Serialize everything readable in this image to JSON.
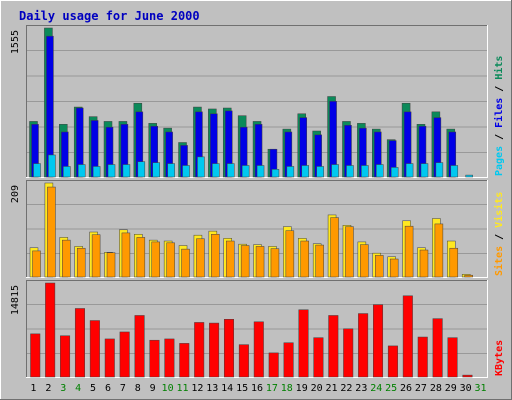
{
  "chart_data": {
    "type": "bar",
    "title": "Daily usage for June 2000",
    "categories": [
      "1",
      "2",
      "3",
      "4",
      "5",
      "6",
      "7",
      "8",
      "9",
      "10",
      "11",
      "12",
      "13",
      "14",
      "15",
      "16",
      "17",
      "18",
      "19",
      "20",
      "21",
      "22",
      "23",
      "24",
      "25",
      "26",
      "27",
      "28",
      "29",
      "30",
      "31"
    ],
    "weekend_days": [
      "3",
      "4",
      "10",
      "11",
      "17",
      "18",
      "24",
      "25",
      "31"
    ],
    "panels": [
      {
        "name": "hits-files-pages",
        "ymax_label": "1555",
        "ylim": [
          0,
          1555
        ],
        "legend": [
          "Pages",
          "/",
          "Files",
          "/",
          "Hits"
        ],
        "series": [
          {
            "name": "Hits",
            "values": [
              580,
              1555,
              550,
              730,
              630,
              580,
              580,
              770,
              560,
              510,
              360,
              730,
              710,
              720,
              640,
              580,
              290,
              500,
              660,
              480,
              840,
              580,
              560,
              500,
              390,
              770,
              550,
              680,
              500,
              0,
              0
            ]
          },
          {
            "name": "Files",
            "values": [
              550,
              1470,
              470,
              720,
              590,
              520,
              550,
              680,
              530,
              470,
              330,
              680,
              660,
              690,
              520,
              550,
              290,
              470,
              620,
              440,
              790,
              540,
              510,
              470,
              380,
              680,
              530,
              620,
              470,
              0,
              0
            ]
          },
          {
            "name": "Pages",
            "values": [
              140,
              230,
              110,
              130,
              110,
              130,
              130,
              160,
              150,
              140,
              120,
              210,
              140,
              140,
              120,
              120,
              80,
              110,
              120,
              110,
              130,
              120,
              120,
              130,
              100,
              140,
              140,
              150,
              120,
              20,
              0
            ]
          }
        ]
      },
      {
        "name": "visits-sites",
        "ymax_label": "209",
        "ylim": [
          0,
          209
        ],
        "legend": [
          "Sites",
          "/",
          "Visits"
        ],
        "series": [
          {
            "name": "Visits",
            "values": [
              65,
              209,
              88,
              68,
              100,
              55,
              105,
              95,
              82,
              80,
              70,
              93,
              102,
              86,
              73,
              72,
              68,
              112,
              86,
              74,
              138,
              115,
              78,
              53,
              45,
              125,
              65,
              130,
              80,
              6,
              0
            ]
          },
          {
            "name": "Sites",
            "values": [
              58,
              200,
              82,
              64,
              94,
              54,
              98,
              88,
              78,
              76,
              62,
              85,
              95,
              80,
              70,
              68,
              63,
              103,
              80,
              71,
              132,
              112,
              72,
              48,
              40,
              113,
              60,
              118,
              64,
              4,
              0
            ]
          }
        ]
      },
      {
        "name": "kbytes",
        "ymax_label": "14815",
        "ylim": [
          0,
          14815
        ],
        "legend": [
          "KBytes"
        ],
        "series": [
          {
            "name": "KBytes",
            "values": [
              6800,
              14815,
              6500,
              10800,
              8900,
              6000,
              7100,
              9700,
              5800,
              6000,
              5300,
              8600,
              8500,
              9100,
              5100,
              8700,
              3800,
              5400,
              10600,
              6200,
              9700,
              7600,
              10000,
              11400,
              4900,
              12800,
              6300,
              9200,
              6200,
              300,
              0
            ]
          }
        ]
      }
    ],
    "colors": {
      "hits": "#0b8a5a",
      "files": "#0000e6",
      "pages": "#00c8f0",
      "visits": "#ffe820",
      "sites": "#ff9900",
      "kbytes": "#ff0000",
      "title": "#0000c0",
      "weekend": "#008000"
    }
  }
}
